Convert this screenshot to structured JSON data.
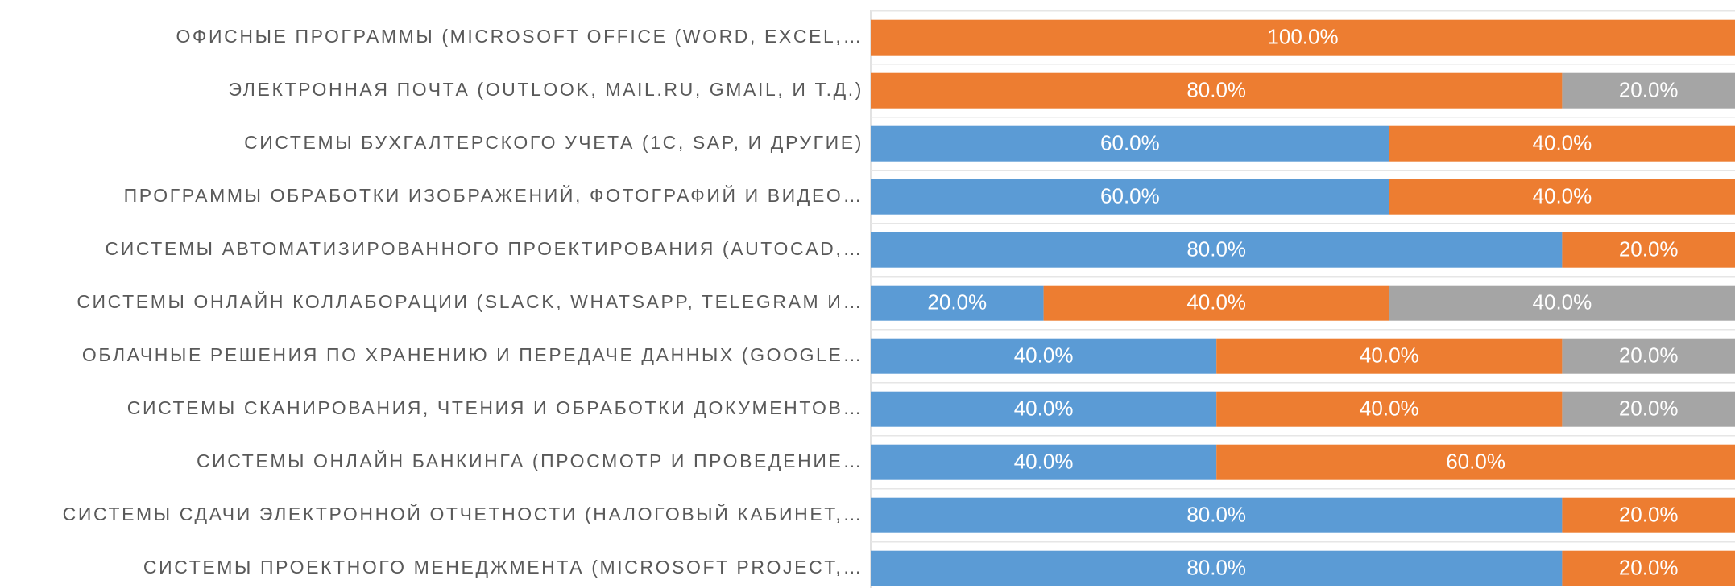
{
  "chart_data": {
    "type": "stacked-barh",
    "categories": [
      "ОФИСНЫЕ ПРОГРАММЫ (MICROSOFT OFFICE (WORD, EXCEL,…",
      "ЭЛЕКТРОННАЯ ПОЧТА (OUTLOOK, MAIL.RU, GMAIL, И Т.Д.)",
      "СИСТЕМЫ БУХГАЛТЕРСКОГО УЧЕТА (1С, SAP, И ДРУГИЕ)",
      "ПРОГРАММЫ ОБРАБОТКИ ИЗОБРАЖЕНИЙ, ФОТОГРАФИЙ И ВИДЕО…",
      "СИСТЕМЫ АВТОМАТИЗИРОВАННОГО ПРОЕКТИРОВАНИЯ (AUTOCAD,…",
      "СИСТЕМЫ ОНЛАЙН КОЛЛАБОРАЦИИ (SLACK, WHATSAPP, TELEGRAM И…",
      "ОБЛАЧНЫЕ РЕШЕНИЯ ПО ХРАНЕНИЮ И ПЕРЕДАЧЕ ДАННЫХ (GOOGLE…",
      "СИСТЕМЫ СКАНИРОВАНИЯ, ЧТЕНИЯ И ОБРАБОТКИ ДОКУМЕНТОВ…",
      "СИСТЕМЫ ОНЛАЙН БАНКИНГА (ПРОСМОТР И ПРОВЕДЕНИЕ…",
      "СИСТЕМЫ СДАЧИ ЭЛЕКТРОННОЙ ОТЧЕТНОСТИ (НАЛОГОВЫЙ КАБИНЕТ,…",
      "СИСТЕМЫ ПРОЕКТНОГО МЕНЕДЖМЕНТА (MICROSOFT PROJECT,…"
    ],
    "series": [
      {
        "color": "#5b9bd5",
        "values": [
          null,
          null,
          60,
          60,
          80,
          20,
          40,
          40,
          40,
          80,
          80
        ],
        "value_labels": [
          null,
          null,
          "60.0%",
          "60.0%",
          "80.0%",
          "20.0%",
          "40.0%",
          "40.0%",
          "40.0%",
          "80.0%",
          "80.0%"
        ]
      },
      {
        "color": "#ed7d31",
        "values": [
          100,
          80,
          40,
          40,
          20,
          40,
          40,
          40,
          60,
          20,
          20
        ],
        "value_labels": [
          "100.0%",
          "80.0%",
          "40.0%",
          "40.0%",
          "20.0%",
          "40.0%",
          "40.0%",
          "40.0%",
          "60.0%",
          "20.0%",
          "20.0%"
        ]
      },
      {
        "color": "#a5a5a5",
        "values": [
          null,
          20,
          null,
          null,
          null,
          40,
          20,
          20,
          null,
          null,
          null
        ],
        "value_labels": [
          null,
          "20.0%",
          null,
          null,
          null,
          "40.0%",
          "20.0%",
          "20.0%",
          null,
          null,
          null
        ]
      }
    ],
    "xlim": [
      0,
      100
    ]
  }
}
